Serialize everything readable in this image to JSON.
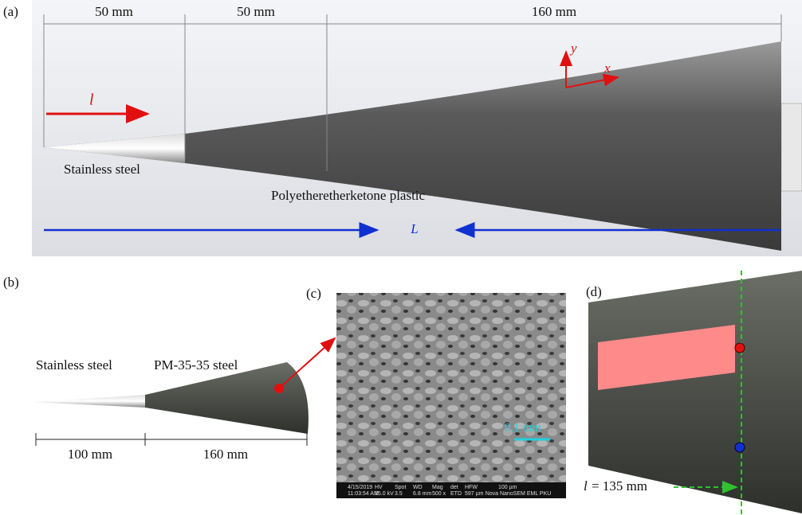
{
  "panel_a": {
    "label": "(a)",
    "dims": [
      "50 mm",
      "50 mm",
      "160 mm"
    ],
    "axis_y": "y",
    "axis_x": "x",
    "arrow_l": "l",
    "steel": "Stainless steel",
    "plastic": "Polyetheretherketone plastic",
    "length": "L"
  },
  "panel_b": {
    "label": "(b)",
    "steel": "Stainless steel",
    "pm_steel": "PM-35-35 steel",
    "dims": [
      "100 mm",
      "160 mm"
    ]
  },
  "panel_c": {
    "label": "(c)",
    "scale": "0.1 mm",
    "info": [
      "4/15/2019",
      "11:03:54 AM",
      "HV",
      "15.0 kV",
      "Spot",
      "3.5",
      "WD",
      "6.8 mm",
      "Mag",
      "500 x",
      "det",
      "ETD",
      "HFW",
      "597 µm",
      "100 µm",
      "Nova NanoSEM EML PKU"
    ]
  },
  "panel_d": {
    "label": "(d)",
    "l_symbol": "l",
    "l_value": "= 135 mm"
  }
}
